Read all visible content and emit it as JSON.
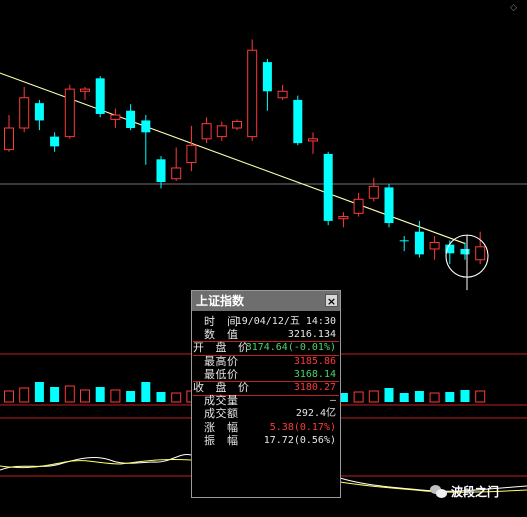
{
  "chart_data": {
    "type": "candlestick",
    "title": "",
    "candles": [
      {
        "open": 3130,
        "close": 3150,
        "high": 3162,
        "low": 3128
      },
      {
        "open": 3150,
        "close": 3178,
        "high": 3188,
        "low": 3146
      },
      {
        "open": 3173,
        "close": 3157,
        "high": 3176,
        "low": 3148
      },
      {
        "open": 3142,
        "close": 3133,
        "high": 3146,
        "low": 3128
      },
      {
        "open": 3142,
        "close": 3186,
        "high": 3190,
        "low": 3140
      },
      {
        "open": 3184,
        "close": 3186,
        "high": 3188,
        "low": 3176
      },
      {
        "open": 3196,
        "close": 3163,
        "high": 3198,
        "low": 3160
      },
      {
        "open": 3158,
        "close": 3162,
        "high": 3168,
        "low": 3150
      },
      {
        "open": 3166,
        "close": 3150,
        "high": 3172,
        "low": 3148
      },
      {
        "open": 3157,
        "close": 3146,
        "high": 3162,
        "low": 3116
      },
      {
        "open": 3121,
        "close": 3100,
        "high": 3124,
        "low": 3094
      },
      {
        "open": 3103,
        "close": 3113,
        "high": 3132,
        "low": 3101
      },
      {
        "open": 3118,
        "close": 3134,
        "high": 3152,
        "low": 3110
      },
      {
        "open": 3140,
        "close": 3154,
        "high": 3160,
        "low": 3136
      },
      {
        "open": 3142,
        "close": 3152,
        "high": 3156,
        "low": 3138
      },
      {
        "open": 3150,
        "close": 3156,
        "high": 3158,
        "low": 3148
      },
      {
        "open": 3142,
        "close": 3222,
        "high": 3232,
        "low": 3138
      },
      {
        "open": 3211,
        "close": 3184,
        "high": 3214,
        "low": 3166
      },
      {
        "open": 3178,
        "close": 3184,
        "high": 3190,
        "low": 3176
      },
      {
        "open": 3176,
        "close": 3136,
        "high": 3180,
        "low": 3134
      },
      {
        "open": 3138,
        "close": 3140,
        "high": 3146,
        "low": 3126
      },
      {
        "open": 3126,
        "close": 3064,
        "high": 3128,
        "low": 3060
      },
      {
        "open": 3066,
        "close": 3068,
        "high": 3072,
        "low": 3058
      },
      {
        "open": 3071,
        "close": 3084,
        "high": 3090,
        "low": 3068
      },
      {
        "open": 3085,
        "close": 3096,
        "high": 3104,
        "low": 3082
      },
      {
        "open": 3095,
        "close": 3062,
        "high": 3098,
        "low": 3058
      },
      {
        "open": 3046,
        "close": 3046,
        "high": 3050,
        "low": 3036
      },
      {
        "open": 3054,
        "close": 3033,
        "high": 3064,
        "low": 3030
      },
      {
        "open": 3038,
        "close": 3044,
        "high": 3050,
        "low": 3028
      },
      {
        "open": 3042,
        "close": 3034,
        "high": 3046,
        "low": 3024
      },
      {
        "open": 3038,
        "close": 3033,
        "high": 3044,
        "low": 3028
      },
      {
        "open": 3028,
        "close": 3040,
        "high": 3054,
        "low": 3024
      }
    ],
    "volumes": [
      {
        "v": 0.55,
        "up": true
      },
      {
        "v": 0.7,
        "up": true
      },
      {
        "v": 1.0,
        "up": false
      },
      {
        "v": 0.75,
        "up": false
      },
      {
        "v": 0.8,
        "up": true
      },
      {
        "v": 0.6,
        "up": true
      },
      {
        "v": 0.75,
        "up": false
      },
      {
        "v": 0.6,
        "up": true
      },
      {
        "v": 0.55,
        "up": false
      },
      {
        "v": 1.0,
        "up": false
      },
      {
        "v": 0.5,
        "up": false
      },
      {
        "v": 0.45,
        "up": true
      },
      {
        "v": 0.55,
        "up": true
      },
      {
        "v": 0.6,
        "up": true
      },
      {
        "v": 0.45,
        "up": true
      },
      {
        "v": 0.35,
        "up": true
      },
      {
        "v": 0.9,
        "up": true
      },
      {
        "v": 0.75,
        "up": false
      },
      {
        "v": 0.5,
        "up": true
      },
      {
        "v": 0.65,
        "up": false
      },
      {
        "v": 0.55,
        "up": true
      },
      {
        "v": 0.8,
        "up": false
      },
      {
        "v": 0.45,
        "up": false
      },
      {
        "v": 0.5,
        "up": true
      },
      {
        "v": 0.55,
        "up": true
      },
      {
        "v": 0.7,
        "up": false
      },
      {
        "v": 0.45,
        "up": false
      },
      {
        "v": 0.55,
        "up": false
      },
      {
        "v": 0.45,
        "up": true
      },
      {
        "v": 0.5,
        "up": false
      },
      {
        "v": 0.6,
        "up": false
      },
      {
        "v": 0.55,
        "up": true
      }
    ],
    "trendline": {
      "from_index": -1,
      "from_value": 3203,
      "to_index": 30,
      "to_value": 3043
    },
    "highlighted_index": 30,
    "colors": {
      "up": "#ff3a3a",
      "down": "#00ffff",
      "trendline": "#ffffb0",
      "grid": "#bf2020"
    }
  },
  "tooltip": {
    "title": "上证指数",
    "close_label": "×",
    "rows": [
      {
        "label": "时间",
        "value": "19/04/12/五 14:30",
        "tone": "plain"
      },
      {
        "label": "数值",
        "value": "3216.134",
        "tone": "plain"
      },
      {
        "label": "开盘价",
        "value": "3174.64(-0.01%)",
        "tone": "down",
        "hl": true
      },
      {
        "label": "最高价",
        "value": "3185.86",
        "tone": "up"
      },
      {
        "label": "最低价",
        "value": "3168.14",
        "tone": "down"
      },
      {
        "label": "收盘价",
        "value": "3180.27",
        "tone": "up",
        "hl": true
      },
      {
        "label": "成交量",
        "value": "—",
        "tone": "plain"
      },
      {
        "label": "成交额",
        "value": "292.4亿",
        "tone": "plain"
      },
      {
        "label": "涨幅",
        "value": "5.38(0.17%)",
        "tone": "up"
      },
      {
        "label": "振幅",
        "value": "17.72(0.56%)",
        "tone": "plain"
      }
    ]
  },
  "watermark": {
    "text": "波段之门",
    "icon": "wechat-icon"
  },
  "corner_icon": "diamond-icon"
}
